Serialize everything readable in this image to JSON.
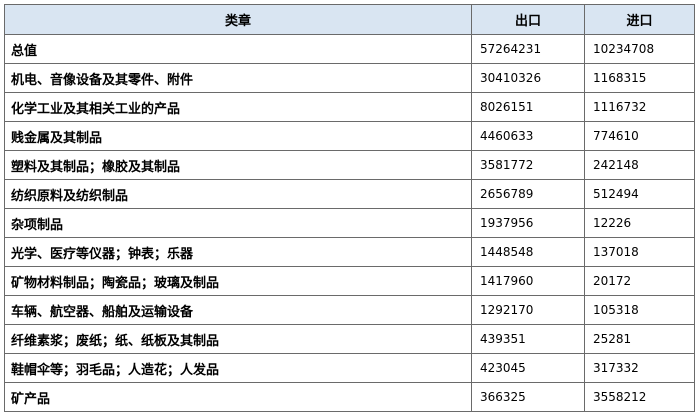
{
  "table": {
    "headers": {
      "category": "类章",
      "export": "出口",
      "import": "进口"
    },
    "rows": [
      {
        "category": "总值",
        "export": "57264231",
        "import": "10234708"
      },
      {
        "category": "机电、音像设备及其零件、附件",
        "export": "30410326",
        "import": "1168315"
      },
      {
        "category": "化学工业及其相关工业的产品",
        "export": "8026151",
        "import": "1116732"
      },
      {
        "category": "贱金属及其制品",
        "export": "4460633",
        "import": "774610"
      },
      {
        "category": "塑料及其制品；橡胶及其制品",
        "export": "3581772",
        "import": "242148"
      },
      {
        "category": "纺织原料及纺织制品",
        "export": "2656789",
        "import": "512494"
      },
      {
        "category": "杂项制品",
        "export": "1937956",
        "import": "12226"
      },
      {
        "category": "光学、医疗等仪器；钟表；乐器",
        "export": "1448548",
        "import": "137018"
      },
      {
        "category": "矿物材料制品；陶瓷品；玻璃及制品",
        "export": "1417960",
        "import": "20172"
      },
      {
        "category": "车辆、航空器、船舶及运输设备",
        "export": "1292170",
        "import": "105318"
      },
      {
        "category": "纤维素浆；废纸；纸、纸板及其制品",
        "export": "439351",
        "import": "25281"
      },
      {
        "category": "鞋帽伞等；羽毛品；人造花；人发品",
        "export": "423045",
        "import": "317332"
      },
      {
        "category": "矿产品",
        "export": "366325",
        "import": "3558212"
      }
    ]
  }
}
